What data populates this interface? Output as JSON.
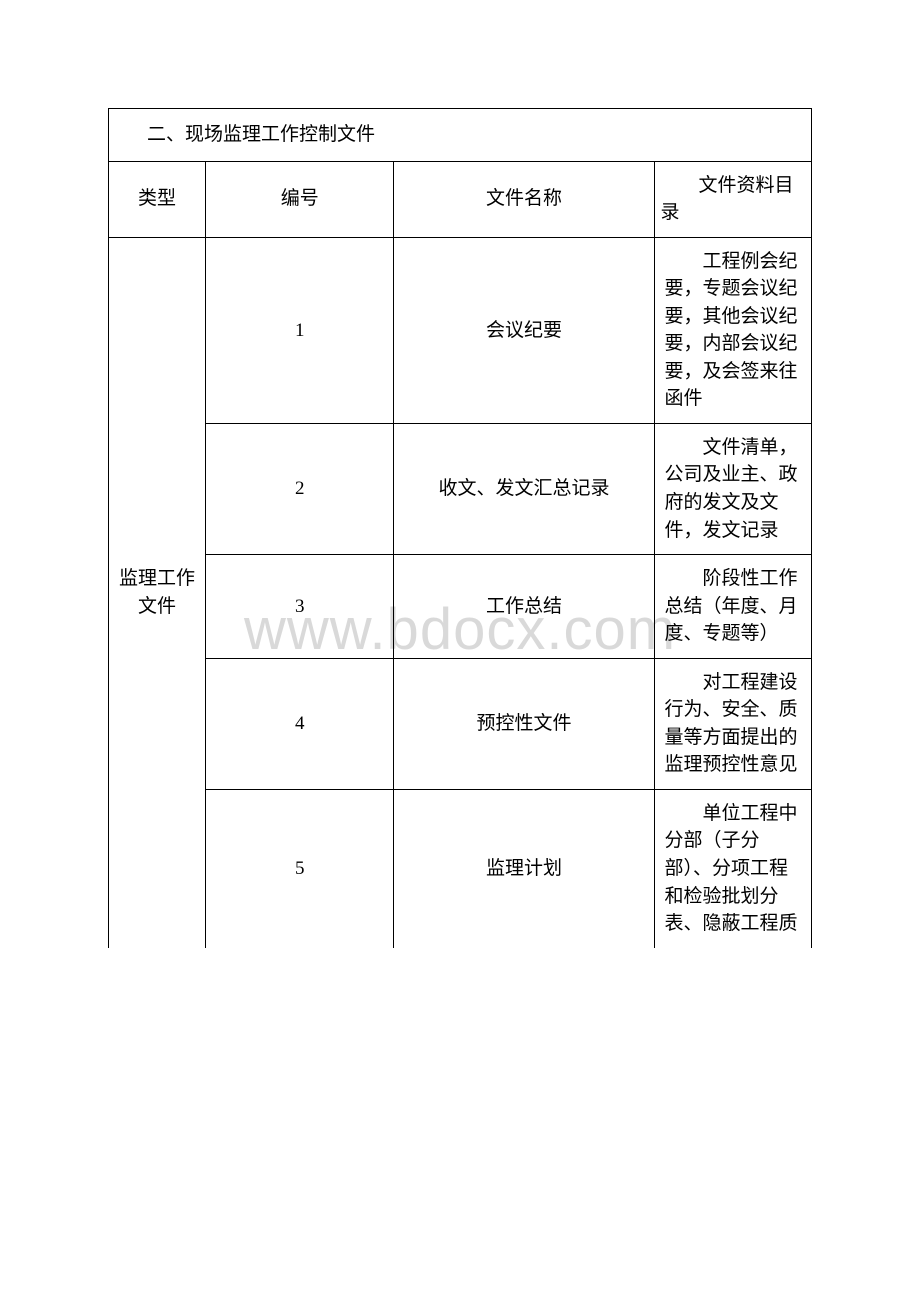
{
  "watermark": {
    "text": "www.bdocx.com",
    "color": "#d9d9d9",
    "fontsize": 58
  },
  "table": {
    "title": "二、现场监理工作控制文件",
    "columns": {
      "type": "类型",
      "number": "编号",
      "name": "文件名称",
      "desc": "文件资料目录"
    },
    "column_widths": [
      13.8,
      26.8,
      37.0,
      22.4
    ],
    "border_color": "#000000",
    "font_size": 19,
    "category_label": "监理工作文件",
    "rows": [
      {
        "num": "1",
        "name": "会议纪要",
        "desc": "工程例会纪要，专题会议纪要，其他会议纪要，内部会议纪要，及会签来往函件"
      },
      {
        "num": "2",
        "name": "收文、发文汇总记录",
        "desc": "文件清单，公司及业主、政府的发文及文件，发文记录"
      },
      {
        "num": "3",
        "name": "工作总结",
        "desc": "阶段性工作总结（年度、月度、专题等）"
      },
      {
        "num": "4",
        "name": "预控性文件",
        "desc": "对工程建设行为、安全、质量等方面提出的监理预控性意见"
      },
      {
        "num": "5",
        "name": "监理计划",
        "desc": "单位工程中分部（子分部）、分项工程和检验批划分表、隐蔽工程质"
      }
    ]
  }
}
